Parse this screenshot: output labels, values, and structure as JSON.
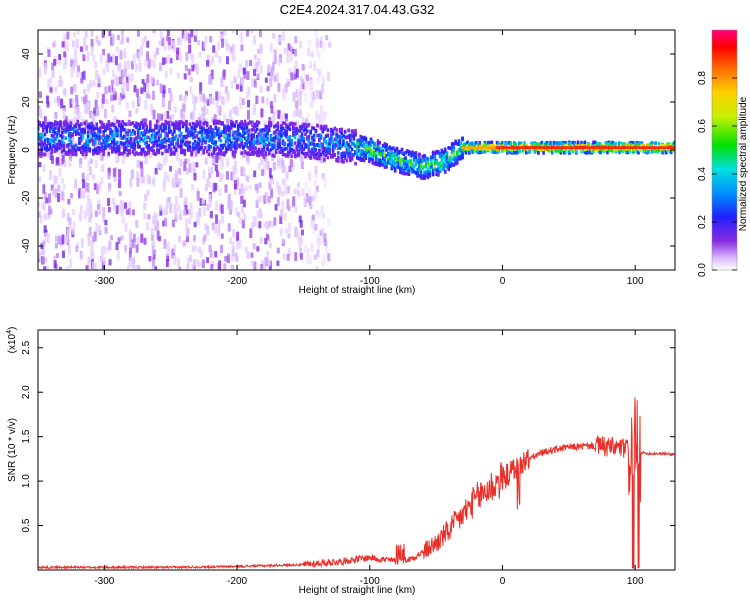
{
  "figure_title": "C2E4.2024.317.04.43.G32",
  "chart_data": [
    {
      "type": "heatmap",
      "title": "C2E4.2024.317.04.43.G32",
      "xlabel": "Height of straight line (km)",
      "ylabel": "Frequency (Hz)",
      "xlim": [
        -350,
        130
      ],
      "ylim": [
        -50,
        50
      ],
      "x_ticks": [
        -300,
        -200,
        -100,
        0,
        100
      ],
      "x_tick_labels": [
        "-300",
        "-200",
        "-100",
        "0",
        "100"
      ],
      "y_ticks": [
        -40,
        -20,
        0,
        20,
        40
      ],
      "y_tick_labels": [
        "-40",
        "-20",
        "0",
        "20",
        "40"
      ],
      "colorbar": {
        "label": "Normalized spectral amplitude",
        "range": [
          0,
          1
        ],
        "ticks": [
          0.0,
          0.2,
          0.4,
          0.6,
          0.8
        ],
        "tick_labels": [
          "0.0",
          "0.2",
          "0.4",
          "0.6",
          "0.8"
        ],
        "colormap": "rainbow (violet-blue-cyan-green-yellow-orange-red-magenta)"
      },
      "ridge_center_hz": {
        "x": [
          -350,
          -300,
          -250,
          -200,
          -150,
          -120,
          -100,
          -80,
          -60,
          -45,
          -30,
          0,
          50,
          100,
          130
        ],
        "y": [
          5,
          5,
          5,
          5,
          4,
          2,
          0,
          -4,
          -7,
          -5,
          1,
          1,
          1,
          1,
          1
        ]
      },
      "noise_region_x": [
        -350,
        -150
      ]
    },
    {
      "type": "line",
      "xlabel": "Height of straight line (km)",
      "ylabel": "SNR (10 * v/v)",
      "y_multiplier_label": "(x10",
      "y_multiplier_exponent": "4",
      "xlim": [
        -350,
        130
      ],
      "ylim": [
        0,
        2.7
      ],
      "x_ticks": [
        -300,
        -200,
        -100,
        0,
        100
      ],
      "x_tick_labels": [
        "-300",
        "-200",
        "-100",
        "0",
        "100"
      ],
      "y_ticks": [
        0.5,
        1.0,
        1.5,
        2.0,
        2.5
      ],
      "y_tick_labels": [
        "0.5",
        "1.0",
        "1.5",
        "2.0",
        "2.5"
      ],
      "series": [
        {
          "color": "#e8302a",
          "x": [
            -350,
            -300,
            -250,
            -200,
            -150,
            -120,
            -100,
            -90,
            -80,
            -70,
            -60,
            -50,
            -40,
            -30,
            -20,
            -10,
            0,
            10,
            20,
            30,
            40,
            50,
            60,
            70,
            80,
            90,
            100,
            105,
            110,
            120,
            130
          ],
          "y": [
            0.03,
            0.03,
            0.03,
            0.04,
            0.06,
            0.1,
            0.14,
            0.12,
            0.1,
            0.12,
            0.2,
            0.3,
            0.45,
            0.62,
            0.8,
            0.92,
            1.02,
            1.15,
            1.25,
            1.32,
            1.36,
            1.38,
            1.39,
            1.4,
            1.38,
            1.37,
            1.34,
            1.32,
            1.31,
            1.31,
            1.3
          ]
        }
      ]
    }
  ]
}
